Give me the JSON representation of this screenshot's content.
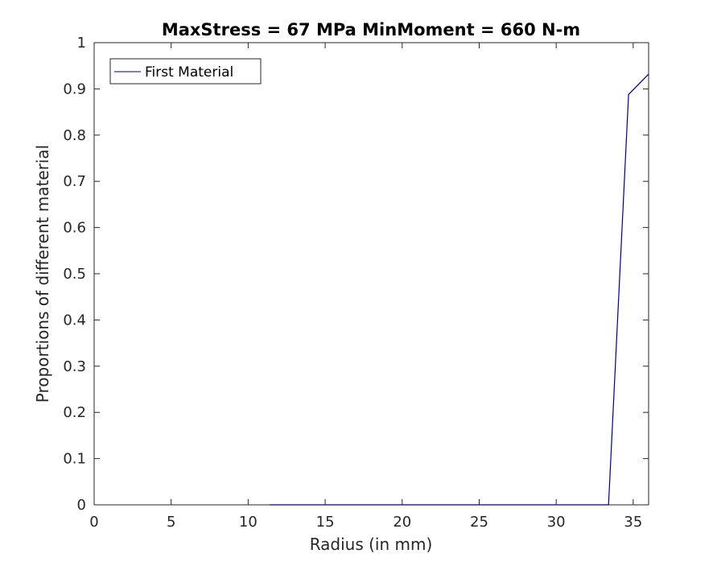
{
  "chart_data": {
    "type": "line",
    "title": "MaxStress = 67 MPa MinMoment = 660 N-m",
    "xlabel": "Radius (in mm)",
    "ylabel": "Proportions of different material",
    "xlim": [
      0,
      36
    ],
    "ylim": [
      0,
      1
    ],
    "xticks": [
      0,
      5,
      10,
      15,
      20,
      25,
      30,
      35
    ],
    "yticks": [
      0,
      0.1,
      0.2,
      0.3,
      0.4,
      0.5,
      0.6,
      0.7,
      0.8,
      0.9,
      1
    ],
    "xtick_labels": [
      "0",
      "5",
      "10",
      "15",
      "20",
      "25",
      "30",
      "35"
    ],
    "ytick_labels": [
      "0",
      "0.1",
      "0.2",
      "0.3",
      "0.4",
      "0.5",
      "0.6",
      "0.7",
      "0.8",
      "0.9",
      "1"
    ],
    "grid": false,
    "legend_position": "top-left",
    "series": [
      {
        "name": "First Material",
        "color": "#00007f",
        "x": [
          11.4,
          33.4,
          34.7,
          36.0
        ],
        "y": [
          0.0,
          0.0,
          0.888,
          0.932
        ]
      }
    ]
  }
}
